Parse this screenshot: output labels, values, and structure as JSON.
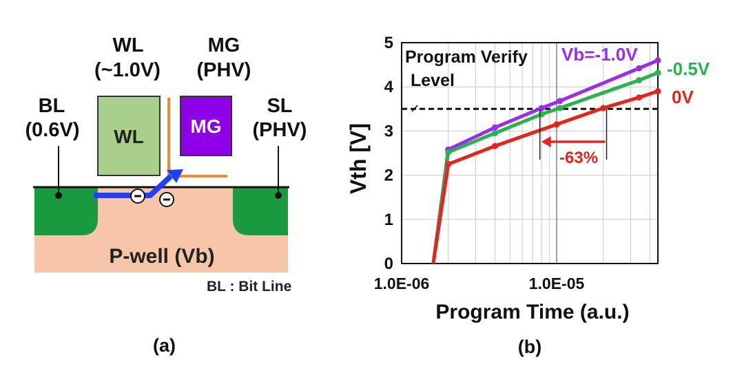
{
  "panel_a": {
    "caption": "(a)",
    "wl_top": "WL",
    "wl_top_voltage": "(~1.0V)",
    "mg_top": "MG",
    "mg_top_voltage": "(PHV)",
    "bl_label": "BL",
    "bl_voltage": "(0.6V)",
    "sl_label": "SL",
    "sl_voltage": "(PHV)",
    "wl_gate": "WL",
    "mg_gate": "MG",
    "pwell": "P-well (Vb)",
    "legend": "BL : Bit Line",
    "electron": "⊖",
    "colors": {
      "wl_gate": "#a9cf8c",
      "mg_gate": "#8f00e8",
      "diffusion": "#1a9a3e",
      "substrate": "#f7c6a8",
      "electron_path": "#1f3fff",
      "spacer": "#f08a2c"
    }
  },
  "panel_b": {
    "caption": "(b)",
    "annotation_verify": "Program Verify",
    "annotation_level": "Level",
    "reduction": "-63%",
    "colors": {
      "vb_minus_1": "#9a2cf0",
      "vb_minus_05": "#27b34e",
      "vb_0": "#e8231a"
    }
  },
  "chart_data": {
    "type": "line",
    "xscale": "log",
    "xlabel": "Program Time (a.u.)",
    "ylabel": "Vth [V]",
    "xlim": [
      1e-06,
      4.5e-05
    ],
    "ylim": [
      0,
      5
    ],
    "xticks": [
      "1.0E-06",
      "1.0E-05"
    ],
    "yticks": [
      "0",
      "1",
      "2",
      "3",
      "4",
      "5"
    ],
    "grid": true,
    "program_verify_level": 3.5,
    "series": [
      {
        "name": "Vb=-1.0V",
        "x": [
          1.6e-06,
          2e-06,
          4e-06,
          8e-06,
          1.05e-05,
          3.4e-05,
          4.5e-05
        ],
        "y": [
          0,
          2.58,
          3.08,
          3.52,
          3.68,
          4.42,
          4.6
        ]
      },
      {
        "name": "-0.5V",
        "x": [
          1.6e-06,
          2e-06,
          4e-06,
          8e-06,
          1.05e-05,
          3.4e-05,
          4.5e-05
        ],
        "y": [
          0,
          2.52,
          2.95,
          3.38,
          3.52,
          4.15,
          4.32
        ]
      },
      {
        "name": "0V",
        "x": [
          1.6e-06,
          2e-06,
          4e-06,
          1e-05,
          2e-05,
          3.4e-05,
          4.5e-05
        ],
        "y": [
          0,
          2.25,
          2.66,
          3.15,
          3.52,
          3.76,
          3.9
        ]
      }
    ]
  }
}
